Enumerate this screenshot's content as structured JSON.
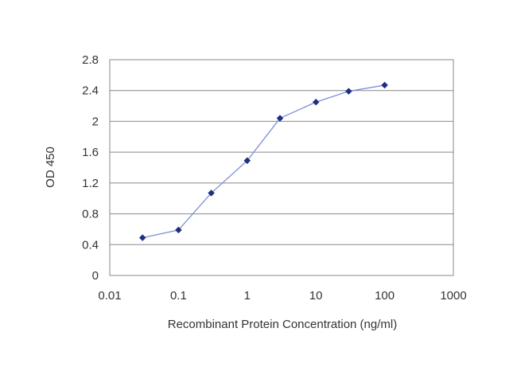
{
  "chart_data": {
    "type": "line",
    "x_scale": "log",
    "x": [
      0.03,
      0.1,
      0.3,
      1,
      3,
      10,
      30,
      100
    ],
    "series": [
      {
        "values": [
          0.49,
          0.59,
          1.07,
          1.49,
          2.04,
          2.25,
          2.39,
          2.47
        ]
      }
    ],
    "xlabel": "Recombinant Protein Concentration (ng/ml)",
    "ylabel": "OD 450",
    "xlim": [
      0.01,
      1000
    ],
    "ylim": [
      0,
      2.8
    ],
    "x_ticks": [
      "0.01",
      "0.1",
      "1",
      "10",
      "100",
      "1000"
    ],
    "y_ticks": [
      "0",
      "0.4",
      "0.8",
      "1.2",
      "1.6",
      "2",
      "2.4",
      "2.8"
    ],
    "grid": "horizontal",
    "colors": {
      "line": "#7f8fd8",
      "marker": "#1f2f7f",
      "grid": "#888888"
    }
  }
}
